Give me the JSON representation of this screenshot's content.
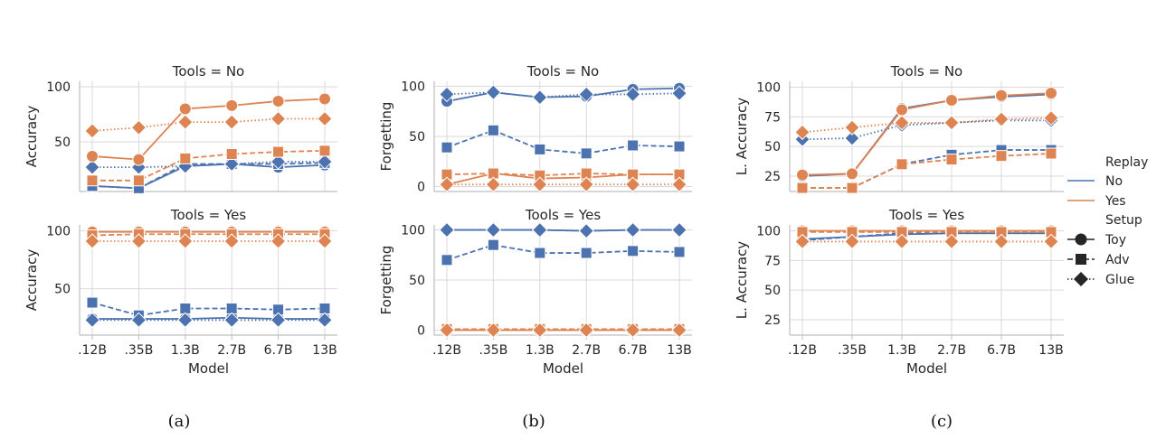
{
  "colors": {
    "no": "#4c72b0",
    "yes": "#dd8452",
    "grid": "#d9d9d9",
    "axis": "#bdbdbd"
  },
  "chart_data": [
    {
      "type": "line",
      "title": "Tools = No",
      "caption": "(a)",
      "categories": [
        ".12B",
        ".35B",
        "1.3B",
        "2.7B",
        "6.7B",
        "13B"
      ],
      "xlabel": "",
      "ylabel": "Accuracy",
      "ylim": [
        5,
        105
      ],
      "yticks": [
        50,
        100
      ],
      "series": [
        {
          "name": "No / Toy",
          "replay": "No",
          "setup": "Toy",
          "values": [
            10,
            8,
            28,
            30,
            27,
            29
          ]
        },
        {
          "name": "No / Adv",
          "replay": "No",
          "setup": "Adv",
          "values": [
            10,
            8,
            30,
            30,
            30,
            31
          ]
        },
        {
          "name": "No / Glue",
          "replay": "No",
          "setup": "Glue",
          "values": [
            27,
            27,
            28,
            30,
            32,
            32
          ]
        },
        {
          "name": "Yes / Toy",
          "replay": "Yes",
          "setup": "Toy",
          "values": [
            37,
            34,
            80,
            83,
            87,
            89
          ]
        },
        {
          "name": "Yes / Adv",
          "replay": "Yes",
          "setup": "Adv",
          "values": [
            15,
            15,
            35,
            39,
            41,
            42
          ]
        },
        {
          "name": "Yes / Glue",
          "replay": "Yes",
          "setup": "Glue",
          "values": [
            60,
            63,
            68,
            68,
            71,
            71
          ]
        }
      ]
    },
    {
      "type": "line",
      "title": "Tools = Yes",
      "categories": [
        ".12B",
        ".35B",
        "1.3B",
        "2.7B",
        "6.7B",
        "13B"
      ],
      "xlabel": "Model",
      "ylabel": "Accuracy",
      "ylim": [
        10,
        105
      ],
      "yticks": [
        50,
        100
      ],
      "series": [
        {
          "name": "No / Toy",
          "replay": "No",
          "setup": "Toy",
          "values": [
            24,
            24,
            24,
            25,
            24,
            24
          ]
        },
        {
          "name": "No / Adv",
          "replay": "No",
          "setup": "Adv",
          "values": [
            38,
            27,
            33,
            33,
            32,
            33
          ]
        },
        {
          "name": "No / Glue",
          "replay": "No",
          "setup": "Glue",
          "values": [
            23,
            23,
            23,
            23,
            23,
            23
          ]
        },
        {
          "name": "Yes / Toy",
          "replay": "Yes",
          "setup": "Toy",
          "values": [
            99,
            99,
            99,
            99,
            99,
            99
          ]
        },
        {
          "name": "Yes / Adv",
          "replay": "Yes",
          "setup": "Adv",
          "values": [
            96,
            97,
            97,
            97,
            97,
            97
          ]
        },
        {
          "name": "Yes / Glue",
          "replay": "Yes",
          "setup": "Glue",
          "values": [
            91,
            91,
            91,
            91,
            91,
            91
          ]
        }
      ]
    },
    {
      "type": "line",
      "title": "Tools = No",
      "caption": "(b)",
      "categories": [
        ".12B",
        ".35B",
        "1.3B",
        "2.7B",
        "6.7B",
        "13B"
      ],
      "xlabel": "",
      "ylabel": "Forgetting",
      "ylim": [
        -5,
        105
      ],
      "yticks": [
        0,
        50,
        100
      ],
      "series": [
        {
          "name": "No / Toy",
          "replay": "No",
          "setup": "Toy",
          "values": [
            85,
            94,
            89,
            90,
            97,
            98
          ]
        },
        {
          "name": "No / Adv",
          "replay": "No",
          "setup": "Adv",
          "values": [
            39,
            56,
            37,
            33,
            41,
            40
          ]
        },
        {
          "name": "No / Glue",
          "replay": "No",
          "setup": "Glue",
          "values": [
            92,
            94,
            89,
            92,
            92,
            93
          ]
        },
        {
          "name": "Yes / Toy",
          "replay": "Yes",
          "setup": "Toy",
          "values": [
            2,
            13,
            8,
            9,
            12,
            12
          ]
        },
        {
          "name": "Yes / Adv",
          "replay": "Yes",
          "setup": "Adv",
          "values": [
            12,
            13,
            11,
            13,
            12,
            12
          ]
        },
        {
          "name": "Yes / Glue",
          "replay": "Yes",
          "setup": "Glue",
          "values": [
            2,
            2,
            2,
            2,
            2,
            2
          ]
        }
      ]
    },
    {
      "type": "line",
      "title": "Tools = Yes",
      "categories": [
        ".12B",
        ".35B",
        "1.3B",
        "2.7B",
        "6.7B",
        "13B"
      ],
      "xlabel": "Model",
      "ylabel": "Forgetting",
      "ylim": [
        -5,
        105
      ],
      "yticks": [
        0,
        50,
        100
      ],
      "series": [
        {
          "name": "No / Toy",
          "replay": "No",
          "setup": "Toy",
          "values": [
            100,
            100,
            100,
            99,
            100,
            100
          ]
        },
        {
          "name": "No / Adv",
          "replay": "No",
          "setup": "Adv",
          "values": [
            70,
            85,
            77,
            77,
            79,
            78
          ]
        },
        {
          "name": "No / Glue",
          "replay": "No",
          "setup": "Glue",
          "values": [
            100,
            100,
            100,
            99,
            100,
            100
          ]
        },
        {
          "name": "Yes / Toy",
          "replay": "Yes",
          "setup": "Toy",
          "values": [
            0,
            0,
            0,
            0,
            0,
            0
          ]
        },
        {
          "name": "Yes / Adv",
          "replay": "Yes",
          "setup": "Adv",
          "values": [
            1,
            1,
            1,
            1,
            1,
            1
          ]
        },
        {
          "name": "Yes / Glue",
          "replay": "Yes",
          "setup": "Glue",
          "values": [
            0,
            0,
            0,
            0,
            0,
            0
          ]
        }
      ]
    },
    {
      "type": "line",
      "title": "Tools = No",
      "caption": "(c)",
      "categories": [
        ".12B",
        ".35B",
        "1.3B",
        "2.7B",
        "6.7B",
        "13B"
      ],
      "xlabel": "",
      "ylabel": "L. Accuracy",
      "ylim": [
        12,
        105
      ],
      "yticks": [
        25,
        50,
        75,
        100
      ],
      "series": [
        {
          "name": "No / Toy",
          "replay": "No",
          "setup": "Toy",
          "values": [
            25,
            27,
            82,
            89,
            92,
            94
          ]
        },
        {
          "name": "No / Adv",
          "replay": "No",
          "setup": "Adv",
          "values": [
            15,
            15,
            35,
            43,
            47,
            47
          ]
        },
        {
          "name": "No / Glue",
          "replay": "No",
          "setup": "Glue",
          "values": [
            56,
            57,
            68,
            70,
            72,
            72
          ]
        },
        {
          "name": "Yes / Toy",
          "replay": "Yes",
          "setup": "Toy",
          "values": [
            26,
            27,
            81,
            89,
            93,
            95
          ]
        },
        {
          "name": "Yes / Adv",
          "replay": "Yes",
          "setup": "Adv",
          "values": [
            15,
            15,
            35,
            39,
            42,
            44
          ]
        },
        {
          "name": "Yes / Glue",
          "replay": "Yes",
          "setup": "Glue",
          "values": [
            62,
            66,
            70,
            70,
            73,
            74
          ]
        }
      ]
    },
    {
      "type": "line",
      "title": "Tools = Yes",
      "categories": [
        ".12B",
        ".35B",
        "1.3B",
        "2.7B",
        "6.7B",
        "13B"
      ],
      "xlabel": "Model",
      "ylabel": "L. Accuracy",
      "ylim": [
        12,
        105
      ],
      "yticks": [
        25,
        50,
        75,
        100
      ],
      "series": [
        {
          "name": "No / Toy",
          "replay": "No",
          "setup": "Toy",
          "values": [
            93,
            95,
            97,
            98,
            98,
            98
          ]
        },
        {
          "name": "No / Adv",
          "replay": "No",
          "setup": "Adv",
          "values": [
            92,
            95,
            98,
            98,
            98,
            98
          ]
        },
        {
          "name": "No / Glue",
          "replay": "No",
          "setup": "Glue",
          "values": [
            91,
            91,
            91,
            91,
            91,
            91
          ]
        },
        {
          "name": "Yes / Toy",
          "replay": "Yes",
          "setup": "Toy",
          "values": [
            100,
            100,
            100,
            100,
            100,
            100
          ]
        },
        {
          "name": "Yes / Adv",
          "replay": "Yes",
          "setup": "Adv",
          "values": [
            99,
            99,
            99,
            99,
            99,
            99
          ]
        },
        {
          "name": "Yes / Glue",
          "replay": "Yes",
          "setup": "Glue",
          "values": [
            91,
            91,
            91,
            91,
            91,
            91
          ]
        }
      ]
    }
  ],
  "legend": {
    "replay_title": "Replay",
    "replay_items": [
      "No",
      "Yes"
    ],
    "setup_title": "Setup",
    "setup_items": [
      "Toy",
      "Adv",
      "Glue"
    ]
  }
}
